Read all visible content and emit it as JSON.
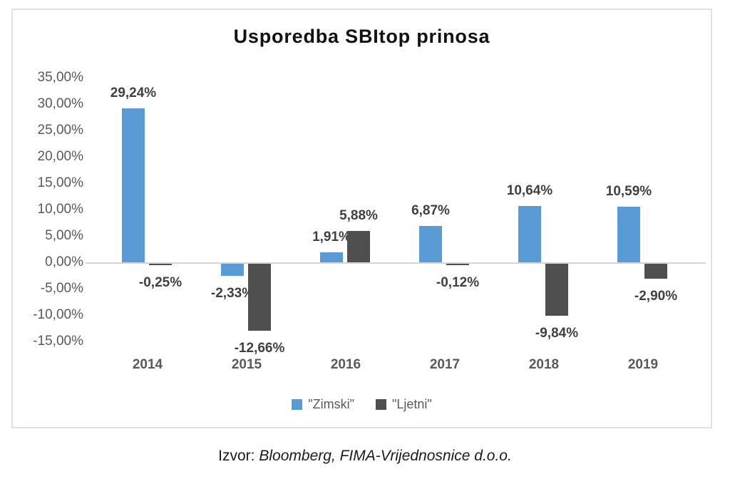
{
  "title": "Usporedba SBItop prinosa",
  "chart_data": {
    "type": "bar",
    "title": "Usporedba SBItop prinosa",
    "categories": [
      "2014",
      "2015",
      "2016",
      "2017",
      "2018",
      "2019"
    ],
    "series": [
      {
        "name": "\"Zimski\"",
        "color": "#5b9bd5",
        "values": [
          29.24,
          -2.33,
          1.91,
          6.87,
          10.64,
          10.59
        ],
        "labels": [
          "29,24%",
          "-2,33%",
          "1,91%",
          "6,87%",
          "10,64%",
          "10,59%"
        ]
      },
      {
        "name": "\"Ljetni\"",
        "color": "#4f4f4f",
        "values": [
          -0.25,
          -12.66,
          5.88,
          -0.12,
          -9.84,
          -2.9
        ],
        "labels": [
          "-0,25%",
          "-12,66%",
          "5,88%",
          "-0,12%",
          "-9,84%",
          "-2,90%"
        ]
      }
    ],
    "y_axis": {
      "min": -15,
      "max": 35,
      "ticks": [
        35,
        30,
        25,
        20,
        15,
        10,
        5,
        0,
        -5,
        -10,
        -15
      ],
      "tick_labels": [
        "35,00%",
        "30,00%",
        "25,00%",
        "20,00%",
        "15,00%",
        "10,00%",
        "5,00%",
        "0,00%",
        "-5,00%",
        "-10,00%",
        "-15,00%"
      ]
    },
    "grid": false,
    "legend_position": "bottom"
  },
  "legend": {
    "items": [
      {
        "label": "\"Zimski\"",
        "color": "#5b9bd5"
      },
      {
        "label": "\"Ljetni\"",
        "color": "#4f4f4f"
      }
    ]
  },
  "source": {
    "prefix": "Izvor: ",
    "text": "Bloomberg, FIMA-Vrijednosnice d.o.o."
  }
}
